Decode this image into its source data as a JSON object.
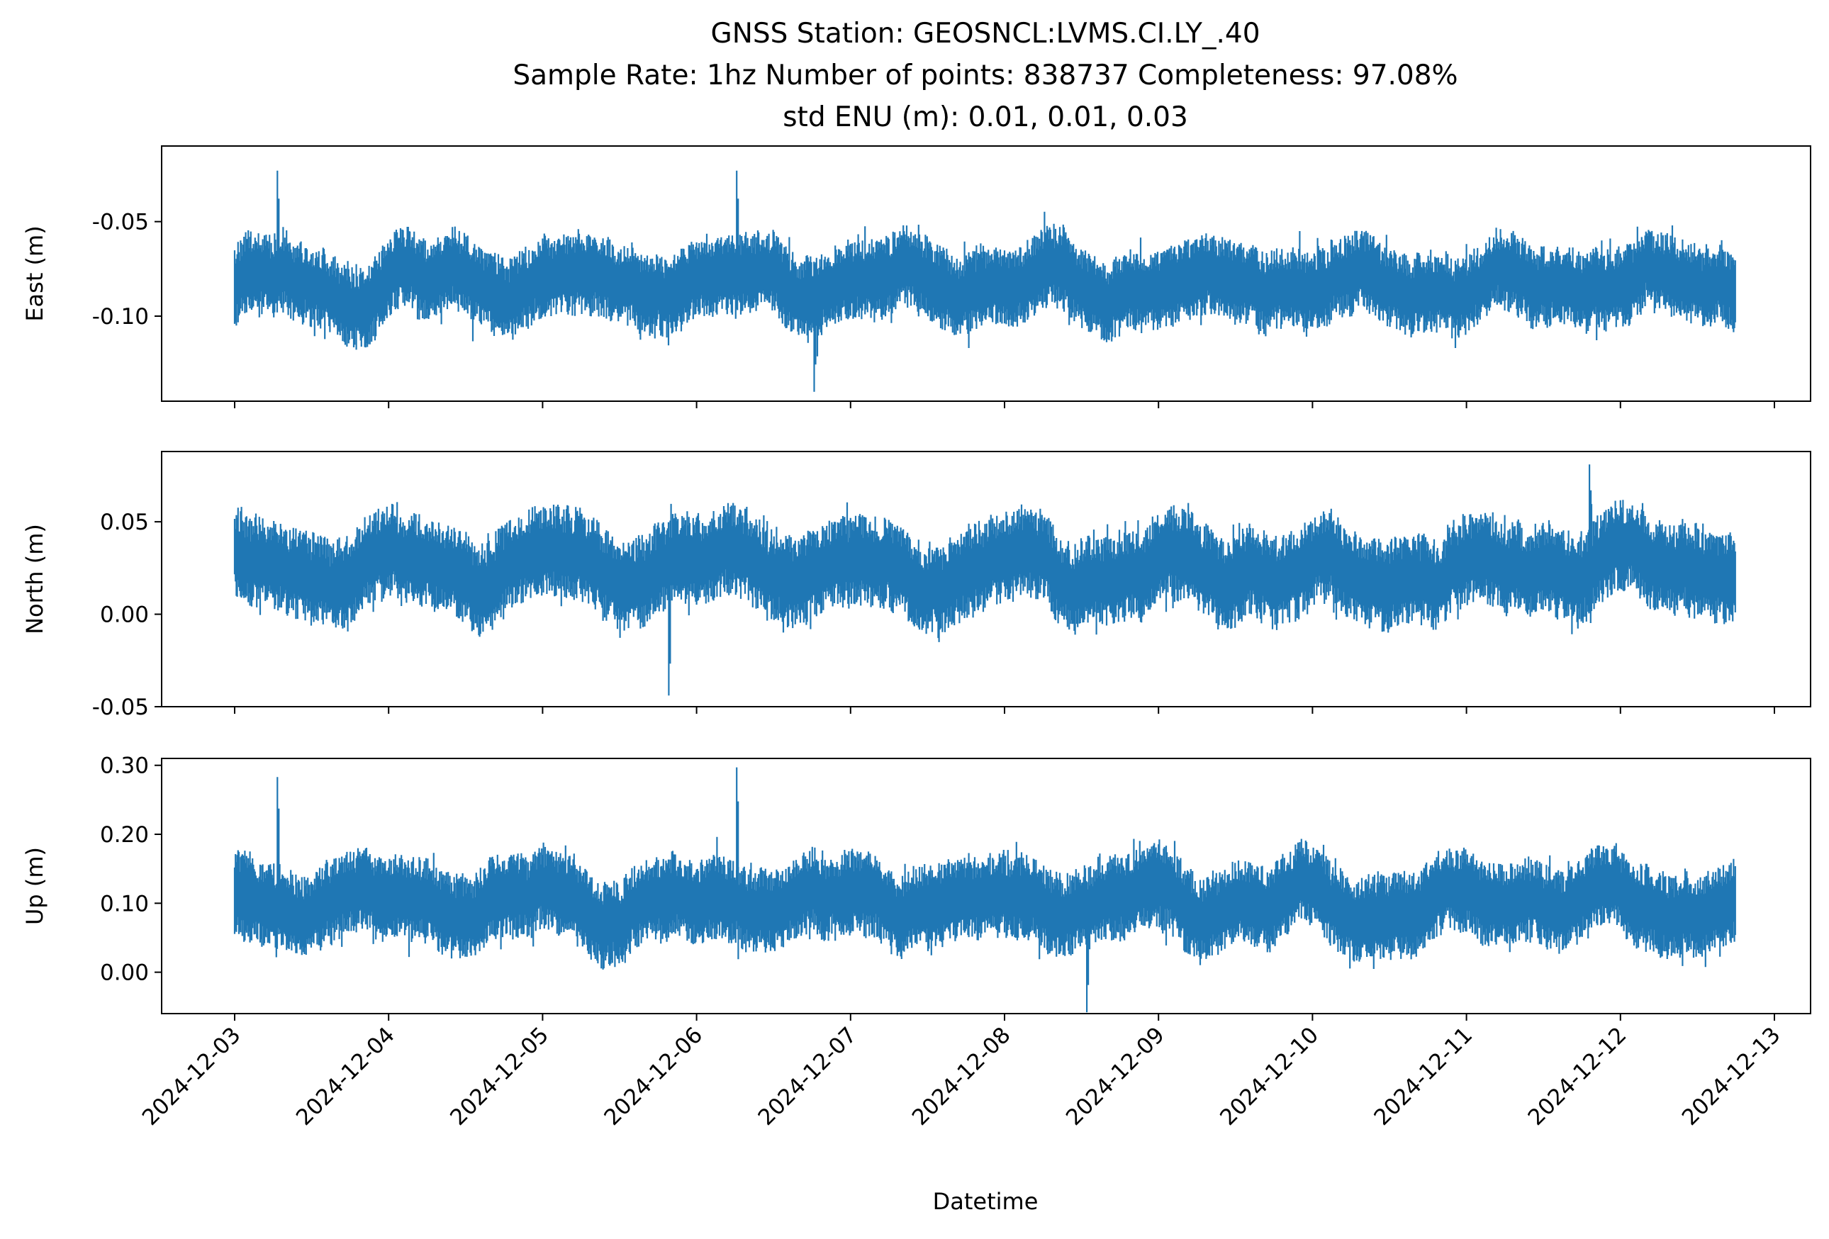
{
  "figure": {
    "title_lines": [
      "GNSS Station: GEOSNCL:LVMS.CI.LY_.40",
      "Sample Rate: 1hz   Number of points: 838737    Completeness:  97.08%",
      "std ENU (m):  0.01, 0.01, 0.03"
    ],
    "xlabel": "Datetime",
    "line_color": "#1f77b4"
  },
  "chart_data": [
    {
      "type": "line",
      "name": "east",
      "ylabel": "East (m)",
      "x_range": [
        "2024-12-03T00:00",
        "2024-12-13T00:00"
      ],
      "data_x_range": [
        "2024-12-03T00:00",
        "2024-12-12T18:00"
      ],
      "ylim": [
        -0.145,
        -0.01
      ],
      "yticks": [
        -0.05,
        -0.1
      ],
      "ytick_labels": [
        "-0.05",
        "-0.10"
      ],
      "xtick_labels_shown": false,
      "band_lower_approx": -0.1,
      "band_upper_approx": -0.065,
      "extremes": [
        {
          "x": "2024-12-03T06:40",
          "y": -0.023
        },
        {
          "x": "2024-12-06T06:15",
          "y": -0.023
        },
        {
          "x": "2024-12-06T18:20",
          "y": -0.14
        }
      ]
    },
    {
      "type": "line",
      "name": "north",
      "ylabel": "North (m)",
      "x_range": [
        "2024-12-03T00:00",
        "2024-12-13T00:00"
      ],
      "data_x_range": [
        "2024-12-03T00:00",
        "2024-12-12T18:00"
      ],
      "ylim": [
        -0.05,
        0.088
      ],
      "yticks": [
        0.05,
        0.0,
        -0.05
      ],
      "ytick_labels": [
        "0.05",
        "0.00",
        "-0.05"
      ],
      "xtick_labels_shown": false,
      "band_lower_approx": 0.005,
      "band_upper_approx": 0.045,
      "extremes": [
        {
          "x": "2024-12-05T19:40",
          "y": -0.044
        },
        {
          "x": "2024-12-11T19:10",
          "y": 0.081
        }
      ]
    },
    {
      "type": "line",
      "name": "up",
      "ylabel": "Up (m)",
      "x_range": [
        "2024-12-03T00:00",
        "2024-12-13T00:00"
      ],
      "data_x_range": [
        "2024-12-03T00:00",
        "2024-12-12T18:00"
      ],
      "ylim": [
        -0.06,
        0.31
      ],
      "yticks": [
        0.3,
        0.2,
        0.1,
        0.0
      ],
      "ytick_labels": [
        "0.30",
        "0.20",
        "0.10",
        "0.00"
      ],
      "xtick_labels_shown": true,
      "band_lower_approx": 0.05,
      "band_upper_approx": 0.15,
      "extremes": [
        {
          "x": "2024-12-03T06:40",
          "y": 0.283
        },
        {
          "x": "2024-12-06T06:15",
          "y": 0.297
        },
        {
          "x": "2024-12-08T12:50",
          "y": -0.058
        }
      ]
    }
  ],
  "x_axis": {
    "tick_labels": [
      "2024-12-03",
      "2024-12-04",
      "2024-12-05",
      "2024-12-06",
      "2024-12-07",
      "2024-12-08",
      "2024-12-09",
      "2024-12-10",
      "2024-12-11",
      "2024-12-12",
      "2024-12-13"
    ]
  }
}
